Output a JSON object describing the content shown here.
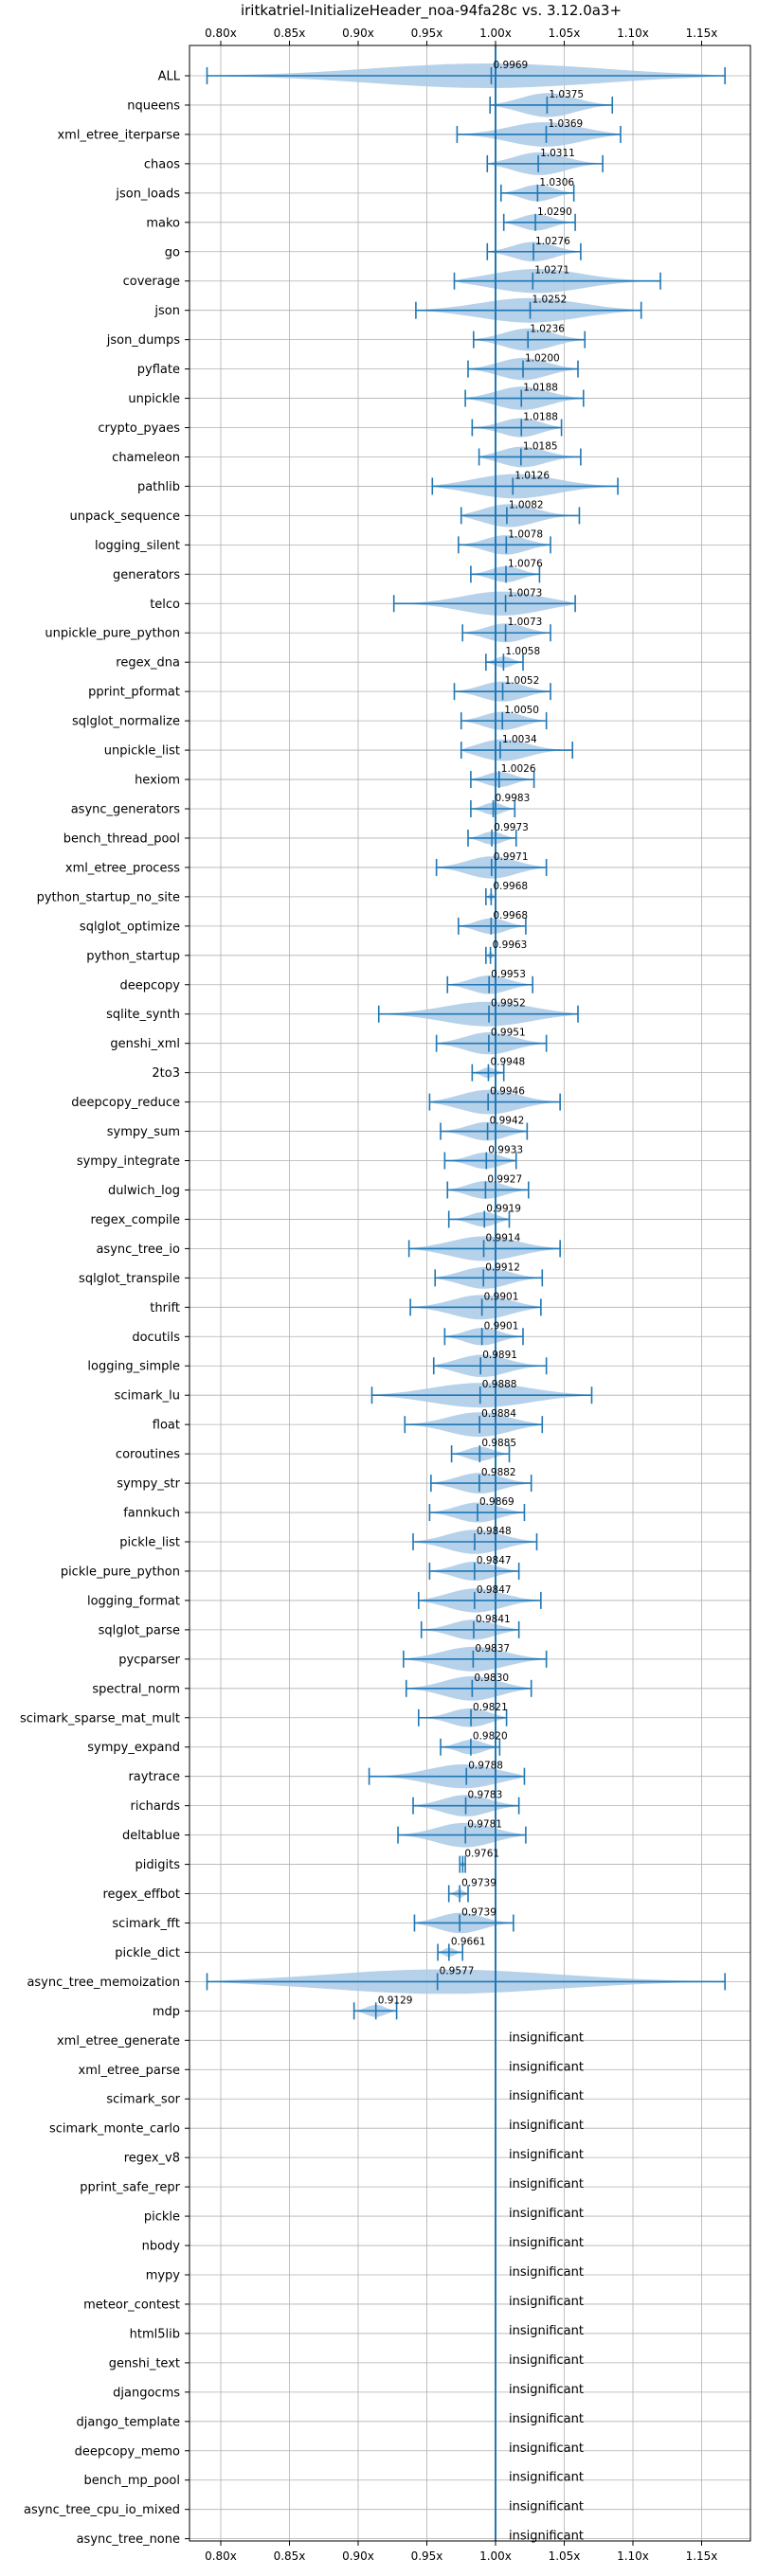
{
  "chart_data": {
    "type": "violin",
    "title": "iritkatriel-InitializeHeader_noa-94fa28c vs. 3.12.0a3+",
    "xlim": [
      0.775,
      1.185
    ],
    "xticks": [
      0.8,
      0.85,
      0.9,
      0.95,
      1.0,
      1.05,
      1.1,
      1.15
    ],
    "xtick_labels": [
      "0.80x",
      "0.85x",
      "0.90x",
      "0.95x",
      "1.00x",
      "1.05x",
      "1.10x",
      "1.15x"
    ],
    "reference_line": 1.0,
    "grid": true,
    "colors": {
      "violin": "#a9c9e6",
      "line": "#1f77b4"
    },
    "significant": [
      {
        "name": "ALL",
        "mean": 0.9969,
        "label": "0.9969",
        "min": 0.79,
        "max": 1.167
      },
      {
        "name": "nqueens",
        "mean": 1.0375,
        "label": "1.0375",
        "min": 0.996,
        "max": 1.085
      },
      {
        "name": "xml_etree_iterparse",
        "mean": 1.0369,
        "label": "1.0369",
        "min": 0.972,
        "max": 1.091
      },
      {
        "name": "chaos",
        "mean": 1.0311,
        "label": "1.0311",
        "min": 0.994,
        "max": 1.078
      },
      {
        "name": "json_loads",
        "mean": 1.0306,
        "label": "1.0306",
        "min": 1.004,
        "max": 1.057
      },
      {
        "name": "mako",
        "mean": 1.029,
        "label": "1.0290",
        "min": 1.006,
        "max": 1.058
      },
      {
        "name": "go",
        "mean": 1.0276,
        "label": "1.0276",
        "min": 0.994,
        "max": 1.062
      },
      {
        "name": "coverage",
        "mean": 1.0271,
        "label": "1.0271",
        "min": 0.97,
        "max": 1.12
      },
      {
        "name": "json",
        "mean": 1.0252,
        "label": "1.0252",
        "min": 0.942,
        "max": 1.106
      },
      {
        "name": "json_dumps",
        "mean": 1.0236,
        "label": "1.0236",
        "min": 0.984,
        "max": 1.065
      },
      {
        "name": "pyflate",
        "mean": 1.02,
        "label": "1.0200",
        "min": 0.98,
        "max": 1.06
      },
      {
        "name": "unpickle",
        "mean": 1.0188,
        "label": "1.0188",
        "min": 0.978,
        "max": 1.064
      },
      {
        "name": "crypto_pyaes",
        "mean": 1.0188,
        "label": "1.0188",
        "min": 0.983,
        "max": 1.048
      },
      {
        "name": "chameleon",
        "mean": 1.0185,
        "label": "1.0185",
        "min": 0.988,
        "max": 1.062
      },
      {
        "name": "pathlib",
        "mean": 1.0126,
        "label": "1.0126",
        "min": 0.954,
        "max": 1.089
      },
      {
        "name": "unpack_sequence",
        "mean": 1.0082,
        "label": "1.0082",
        "min": 0.975,
        "max": 1.061
      },
      {
        "name": "logging_silent",
        "mean": 1.0078,
        "label": "1.0078",
        "min": 0.973,
        "max": 1.04
      },
      {
        "name": "generators",
        "mean": 1.0076,
        "label": "1.0076",
        "min": 0.982,
        "max": 1.032
      },
      {
        "name": "telco",
        "mean": 1.0073,
        "label": "1.0073",
        "min": 0.926,
        "max": 1.058
      },
      {
        "name": "unpickle_pure_python",
        "mean": 1.0073,
        "label": "1.0073",
        "min": 0.976,
        "max": 1.04
      },
      {
        "name": "regex_dna",
        "mean": 1.0058,
        "label": "1.0058",
        "min": 0.993,
        "max": 1.02
      },
      {
        "name": "pprint_pformat",
        "mean": 1.0052,
        "label": "1.0052",
        "min": 0.97,
        "max": 1.04
      },
      {
        "name": "sqlglot_normalize",
        "mean": 1.005,
        "label": "1.0050",
        "min": 0.975,
        "max": 1.037
      },
      {
        "name": "unpickle_list",
        "mean": 1.0034,
        "label": "1.0034",
        "min": 0.975,
        "max": 1.056
      },
      {
        "name": "hexiom",
        "mean": 1.0026,
        "label": "1.0026",
        "min": 0.982,
        "max": 1.028
      },
      {
        "name": "async_generators",
        "mean": 0.9983,
        "label": "0.9983",
        "min": 0.982,
        "max": 1.014
      },
      {
        "name": "bench_thread_pool",
        "mean": 0.9973,
        "label": "0.9973",
        "min": 0.98,
        "max": 1.015
      },
      {
        "name": "xml_etree_process",
        "mean": 0.9971,
        "label": "0.9971",
        "min": 0.957,
        "max": 1.037
      },
      {
        "name": "python_startup_no_site",
        "mean": 0.9968,
        "label": "0.9968",
        "min": 0.993,
        "max": 1.0
      },
      {
        "name": "sqlglot_optimize",
        "mean": 0.9968,
        "label": "0.9968",
        "min": 0.973,
        "max": 1.022
      },
      {
        "name": "python_startup",
        "mean": 0.9963,
        "label": "0.9963",
        "min": 0.993,
        "max": 1.0
      },
      {
        "name": "deepcopy",
        "mean": 0.9953,
        "label": "0.9953",
        "min": 0.965,
        "max": 1.027
      },
      {
        "name": "sqlite_synth",
        "mean": 0.9952,
        "label": "0.9952",
        "min": 0.915,
        "max": 1.06
      },
      {
        "name": "genshi_xml",
        "mean": 0.9951,
        "label": "0.9951",
        "min": 0.957,
        "max": 1.037
      },
      {
        "name": "2to3",
        "mean": 0.9948,
        "label": "0.9948",
        "min": 0.983,
        "max": 1.006
      },
      {
        "name": "deepcopy_reduce",
        "mean": 0.9946,
        "label": "0.9946",
        "min": 0.952,
        "max": 1.047
      },
      {
        "name": "sympy_sum",
        "mean": 0.9942,
        "label": "0.9942",
        "min": 0.96,
        "max": 1.023
      },
      {
        "name": "sympy_integrate",
        "mean": 0.9933,
        "label": "0.9933",
        "min": 0.963,
        "max": 1.015
      },
      {
        "name": "dulwich_log",
        "mean": 0.9927,
        "label": "0.9927",
        "min": 0.965,
        "max": 1.024
      },
      {
        "name": "regex_compile",
        "mean": 0.9919,
        "label": "0.9919",
        "min": 0.966,
        "max": 1.01
      },
      {
        "name": "async_tree_io",
        "mean": 0.9914,
        "label": "0.9914",
        "min": 0.937,
        "max": 1.047
      },
      {
        "name": "sqlglot_transpile",
        "mean": 0.9912,
        "label": "0.9912",
        "min": 0.956,
        "max": 1.034
      },
      {
        "name": "thrift",
        "mean": 0.9901,
        "label": "0.9901",
        "min": 0.938,
        "max": 1.033
      },
      {
        "name": "docutils",
        "mean": 0.9901,
        "label": "0.9901",
        "min": 0.963,
        "max": 1.02
      },
      {
        "name": "logging_simple",
        "mean": 0.9891,
        "label": "0.9891",
        "min": 0.955,
        "max": 1.037
      },
      {
        "name": "scimark_lu",
        "mean": 0.9888,
        "label": "0.9888",
        "min": 0.91,
        "max": 1.07
      },
      {
        "name": "float",
        "mean": 0.9884,
        "label": "0.9884",
        "min": 0.934,
        "max": 1.034
      },
      {
        "name": "coroutines",
        "mean": 0.9885,
        "label": "0.9885",
        "min": 0.968,
        "max": 1.01
      },
      {
        "name": "sympy_str",
        "mean": 0.9882,
        "label": "0.9882",
        "min": 0.953,
        "max": 1.026
      },
      {
        "name": "fannkuch",
        "mean": 0.9869,
        "label": "0.9869",
        "min": 0.952,
        "max": 1.021
      },
      {
        "name": "pickle_list",
        "mean": 0.9848,
        "label": "0.9848",
        "min": 0.94,
        "max": 1.03
      },
      {
        "name": "pickle_pure_python",
        "mean": 0.9847,
        "label": "0.9847",
        "min": 0.952,
        "max": 1.017
      },
      {
        "name": "logging_format",
        "mean": 0.9847,
        "label": "0.9847",
        "min": 0.944,
        "max": 1.033
      },
      {
        "name": "sqlglot_parse",
        "mean": 0.9841,
        "label": "0.9841",
        "min": 0.946,
        "max": 1.017
      },
      {
        "name": "pycparser",
        "mean": 0.9837,
        "label": "0.9837",
        "min": 0.933,
        "max": 1.037
      },
      {
        "name": "spectral_norm",
        "mean": 0.983,
        "label": "0.9830",
        "min": 0.935,
        "max": 1.026
      },
      {
        "name": "scimark_sparse_mat_mult",
        "mean": 0.9821,
        "label": "0.9821",
        "min": 0.944,
        "max": 1.008
      },
      {
        "name": "sympy_expand",
        "mean": 0.982,
        "label": "0.9820",
        "min": 0.96,
        "max": 1.003
      },
      {
        "name": "raytrace",
        "mean": 0.9788,
        "label": "0.9788",
        "min": 0.908,
        "max": 1.021
      },
      {
        "name": "richards",
        "mean": 0.9783,
        "label": "0.9783",
        "min": 0.94,
        "max": 1.017
      },
      {
        "name": "deltablue",
        "mean": 0.9781,
        "label": "0.9781",
        "min": 0.929,
        "max": 1.022
      },
      {
        "name": "pidigits",
        "mean": 0.9761,
        "label": "0.9761",
        "min": 0.974,
        "max": 0.978
      },
      {
        "name": "regex_effbot",
        "mean": 0.9739,
        "label": "0.9739",
        "min": 0.966,
        "max": 0.98
      },
      {
        "name": "scimark_fft",
        "mean": 0.9739,
        "label": "0.9739",
        "min": 0.941,
        "max": 1.013
      },
      {
        "name": "pickle_dict",
        "mean": 0.9661,
        "label": "0.9661",
        "min": 0.958,
        "max": 0.976
      },
      {
        "name": "async_tree_memoization",
        "mean": 0.9577,
        "label": "0.9577",
        "min": 0.79,
        "max": 1.167
      },
      {
        "name": "mdp",
        "mean": 0.9129,
        "label": "0.9129",
        "min": 0.897,
        "max": 0.928
      }
    ],
    "insignificant_label": "insignificant",
    "insignificant": [
      "xml_etree_generate",
      "xml_etree_parse",
      "scimark_sor",
      "scimark_monte_carlo",
      "regex_v8",
      "pprint_safe_repr",
      "pickle",
      "nbody",
      "mypy",
      "meteor_contest",
      "html5lib",
      "genshi_text",
      "djangocms",
      "django_template",
      "deepcopy_memo",
      "bench_mp_pool",
      "async_tree_cpu_io_mixed",
      "async_tree_none"
    ]
  }
}
